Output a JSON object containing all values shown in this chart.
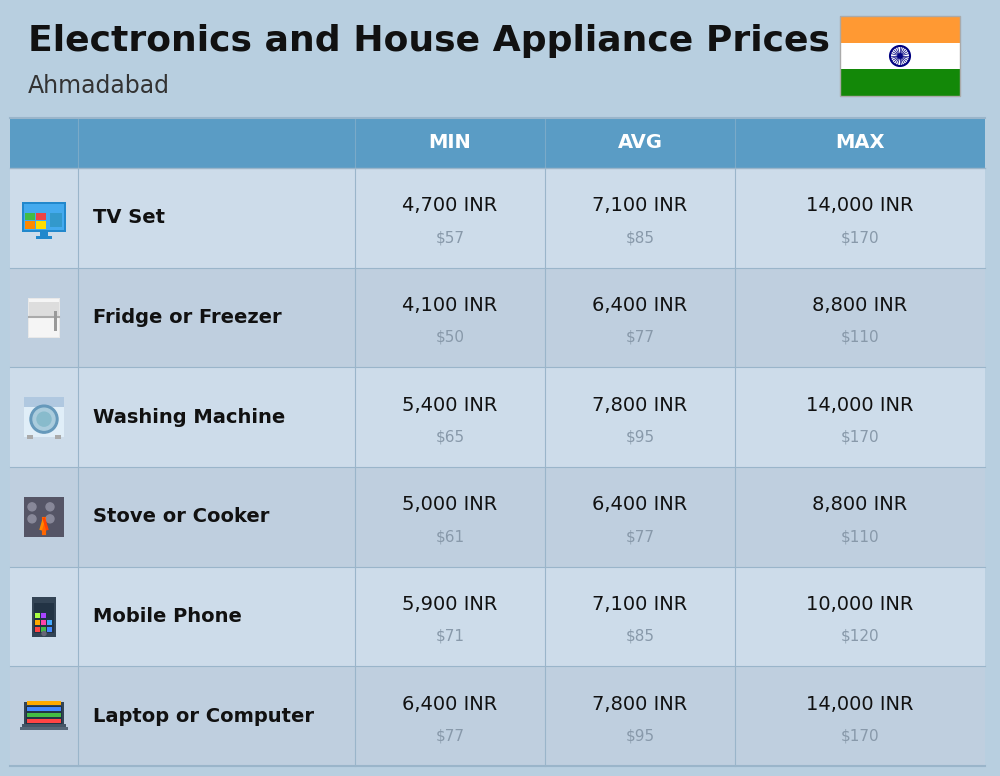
{
  "title": "Electronics and House Appliance Prices",
  "subtitle": "Ahmadabad",
  "bg_color": "#b8cfe0",
  "header_bg": "#5a9cc5",
  "header_text_color": "#ffffff",
  "row_bg_even": "#cddcea",
  "row_bg_odd": "#bfcfdf",
  "text_dark": "#111111",
  "text_gray": "#8899aa",
  "divider_color": "#9ab5ca",
  "columns": [
    "MIN",
    "AVG",
    "MAX"
  ],
  "items": [
    {
      "name": "TV Set",
      "min_inr": "4,700 INR",
      "min_usd": "$57",
      "avg_inr": "7,100 INR",
      "avg_usd": "$85",
      "max_inr": "14,000 INR",
      "max_usd": "$170"
    },
    {
      "name": "Fridge or Freezer",
      "min_inr": "4,100 INR",
      "min_usd": "$50",
      "avg_inr": "6,400 INR",
      "avg_usd": "$77",
      "max_inr": "8,800 INR",
      "max_usd": "$110"
    },
    {
      "name": "Washing Machine",
      "min_inr": "5,400 INR",
      "min_usd": "$65",
      "avg_inr": "7,800 INR",
      "avg_usd": "$95",
      "max_inr": "14,000 INR",
      "max_usd": "$170"
    },
    {
      "name": "Stove or Cooker",
      "min_inr": "5,000 INR",
      "min_usd": "$61",
      "avg_inr": "6,400 INR",
      "avg_usd": "$77",
      "max_inr": "8,800 INR",
      "max_usd": "$110"
    },
    {
      "name": "Mobile Phone",
      "min_inr": "5,900 INR",
      "min_usd": "$71",
      "avg_inr": "7,100 INR",
      "avg_usd": "$85",
      "max_inr": "10,000 INR",
      "max_usd": "$120"
    },
    {
      "name": "Laptop or Computer",
      "min_inr": "6,400 INR",
      "min_usd": "$77",
      "avg_inr": "7,800 INR",
      "avg_usd": "$95",
      "max_inr": "14,000 INR",
      "max_usd": "$170"
    }
  ],
  "flag_orange": "#FF9933",
  "flag_white": "#FFFFFF",
  "flag_green": "#138808",
  "flag_navy": "#000080",
  "title_fontsize": 26,
  "subtitle_fontsize": 17,
  "header_fontsize": 14,
  "name_fontsize": 14,
  "value_fontsize": 14,
  "usd_fontsize": 11
}
